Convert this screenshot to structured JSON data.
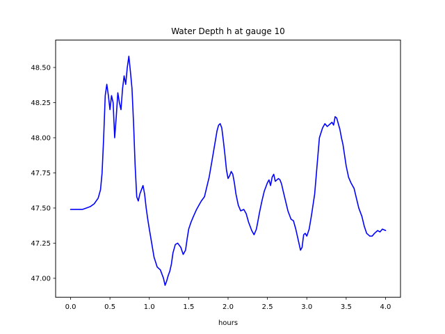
{
  "chart_data": {
    "type": "line",
    "title": "Water Depth h at gauge 10",
    "xlabel": "hours",
    "ylabel": "",
    "xlim": [
      -0.19,
      4.19
    ],
    "ylim": [
      46.865,
      48.695
    ],
    "xticks": [
      0.0,
      0.5,
      1.0,
      1.5,
      2.0,
      2.5,
      3.0,
      3.5,
      4.0
    ],
    "yticks": [
      47.0,
      47.25,
      47.5,
      47.75,
      48.0,
      48.25,
      48.5
    ],
    "xtick_labels": [
      "0.0",
      "0.5",
      "1.0",
      "1.5",
      "2.0",
      "2.5",
      "3.0",
      "3.5",
      "4.0"
    ],
    "ytick_labels": [
      "47.00",
      "47.25",
      "47.50",
      "47.75",
      "48.00",
      "48.25",
      "48.50"
    ],
    "grid": false,
    "series": [
      {
        "color": "#0000ff",
        "x": [
          0.0,
          0.05,
          0.1,
          0.15,
          0.2,
          0.25,
          0.3,
          0.35,
          0.38,
          0.4,
          0.42,
          0.44,
          0.46,
          0.48,
          0.5,
          0.52,
          0.54,
          0.56,
          0.58,
          0.6,
          0.62,
          0.64,
          0.66,
          0.68,
          0.7,
          0.72,
          0.74,
          0.76,
          0.78,
          0.8,
          0.82,
          0.84,
          0.86,
          0.88,
          0.9,
          0.92,
          0.94,
          0.96,
          0.98,
          1.0,
          1.03,
          1.06,
          1.1,
          1.14,
          1.18,
          1.2,
          1.22,
          1.24,
          1.26,
          1.28,
          1.3,
          1.33,
          1.36,
          1.4,
          1.43,
          1.46,
          1.48,
          1.5,
          1.53,
          1.56,
          1.6,
          1.63,
          1.66,
          1.7,
          1.73,
          1.76,
          1.8,
          1.83,
          1.86,
          1.88,
          1.9,
          1.92,
          1.94,
          1.96,
          1.98,
          2.0,
          2.02,
          2.04,
          2.06,
          2.08,
          2.1,
          2.13,
          2.16,
          2.2,
          2.23,
          2.26,
          2.3,
          2.33,
          2.36,
          2.4,
          2.43,
          2.46,
          2.5,
          2.52,
          2.54,
          2.56,
          2.58,
          2.6,
          2.62,
          2.64,
          2.66,
          2.68,
          2.7,
          2.73,
          2.76,
          2.8,
          2.83,
          2.86,
          2.9,
          2.92,
          2.94,
          2.96,
          2.98,
          3.0,
          3.03,
          3.06,
          3.1,
          3.13,
          3.16,
          3.2,
          3.23,
          3.26,
          3.3,
          3.32,
          3.34,
          3.36,
          3.38,
          3.4,
          3.42,
          3.44,
          3.46,
          3.5,
          3.53,
          3.56,
          3.6,
          3.63,
          3.66,
          3.7,
          3.73,
          3.76,
          3.8,
          3.83,
          3.86,
          3.9,
          3.93,
          3.96,
          4.0
        ],
        "y": [
          47.49,
          47.49,
          47.49,
          47.49,
          47.5,
          47.51,
          47.53,
          47.57,
          47.63,
          47.75,
          48.0,
          48.3,
          48.38,
          48.3,
          48.2,
          48.3,
          48.25,
          48.0,
          48.15,
          48.32,
          48.25,
          48.2,
          48.35,
          48.44,
          48.38,
          48.5,
          48.58,
          48.47,
          48.35,
          48.1,
          47.8,
          47.58,
          47.55,
          47.6,
          47.63,
          47.66,
          47.6,
          47.5,
          47.42,
          47.35,
          47.25,
          47.15,
          47.08,
          47.06,
          47.0,
          46.95,
          46.98,
          47.02,
          47.05,
          47.1,
          47.18,
          47.24,
          47.25,
          47.22,
          47.17,
          47.2,
          47.28,
          47.35,
          47.4,
          47.44,
          47.49,
          47.52,
          47.55,
          47.58,
          47.65,
          47.72,
          47.85,
          47.95,
          48.05,
          48.09,
          48.1,
          48.07,
          47.98,
          47.88,
          47.77,
          47.71,
          47.73,
          47.76,
          47.74,
          47.68,
          47.6,
          47.52,
          47.48,
          47.49,
          47.46,
          47.4,
          47.34,
          47.31,
          47.35,
          47.47,
          47.55,
          47.62,
          47.68,
          47.7,
          47.66,
          47.72,
          47.74,
          47.69,
          47.7,
          47.71,
          47.7,
          47.67,
          47.62,
          47.55,
          47.48,
          47.42,
          47.41,
          47.35,
          47.25,
          47.2,
          47.22,
          47.31,
          47.32,
          47.3,
          47.35,
          47.45,
          47.6,
          47.8,
          48.0,
          48.07,
          48.1,
          48.08,
          48.1,
          48.11,
          48.09,
          48.15,
          48.14,
          48.1,
          48.06,
          48.0,
          47.95,
          47.8,
          47.72,
          47.68,
          47.64,
          47.57,
          47.5,
          47.44,
          47.37,
          47.32,
          47.3,
          47.3,
          47.32,
          47.34,
          47.33,
          47.35,
          47.34
        ]
      }
    ]
  }
}
